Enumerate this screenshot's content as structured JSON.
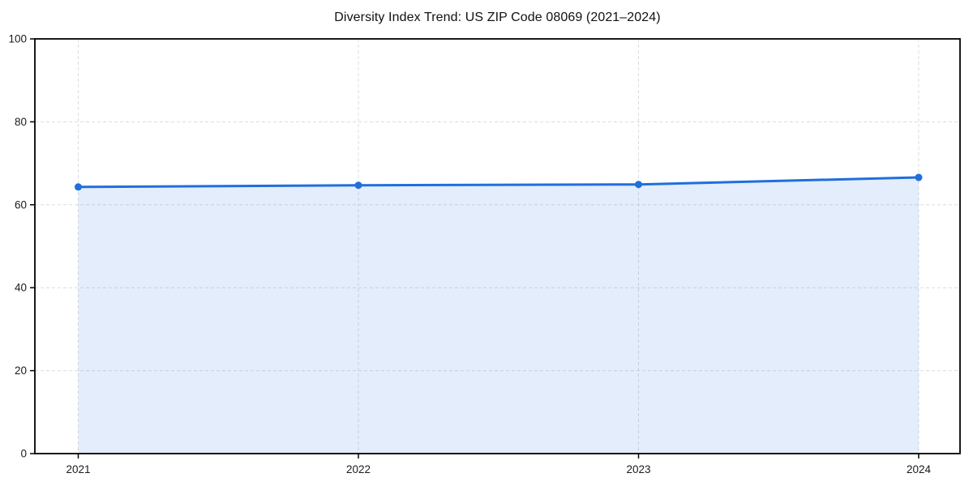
{
  "chart_data": {
    "type": "line",
    "title": "Diversity Index Trend: US ZIP Code 08069 (2021–2024)",
    "categories": [
      "2021",
      "2022",
      "2023",
      "2024"
    ],
    "series": [
      {
        "name": "Diversity Index",
        "values": [
          64.3,
          64.7,
          64.9,
          66.6
        ]
      }
    ],
    "xlabel": "",
    "ylabel": "",
    "ylim": [
      0,
      100
    ],
    "yticks": [
      0,
      20,
      40,
      60,
      80,
      100
    ],
    "grid": true,
    "legend_position": "none",
    "area_fill": true,
    "style": {
      "line_color": "#1f6fdd",
      "marker_color": "#1f6fdd",
      "fill_color": "rgba(31, 111, 221, 0.12)",
      "grid_color": "#dcdcdc",
      "spine_color": "#000000",
      "tick_color": "#000000",
      "tick_label_color": "#1a1a1a",
      "title_color": "#111111",
      "background": "#ffffff"
    }
  }
}
